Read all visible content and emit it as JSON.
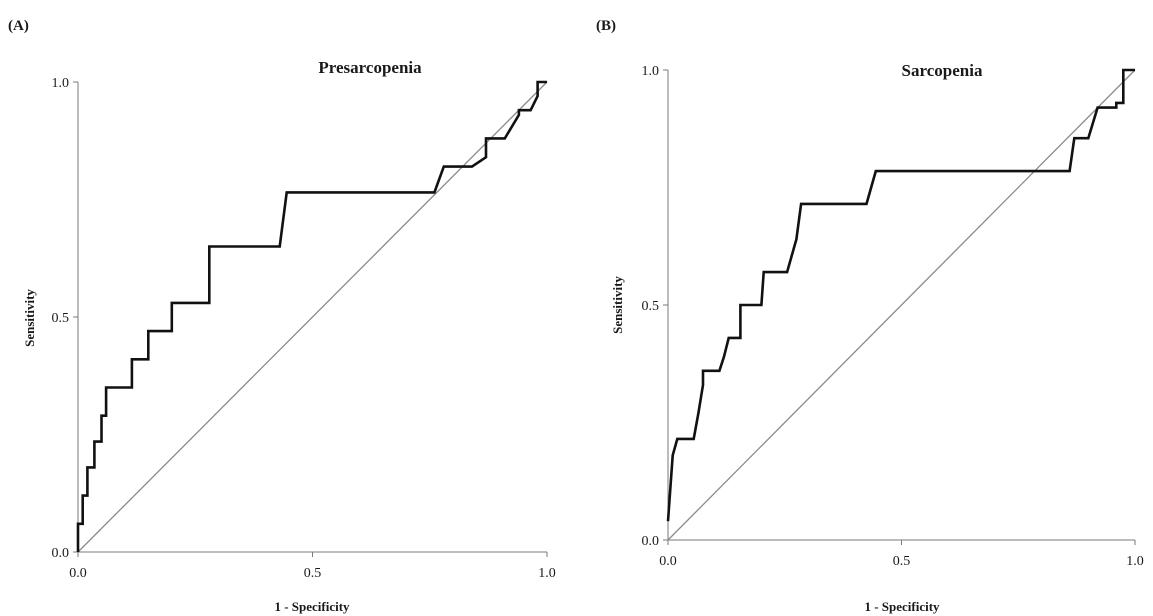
{
  "chart_data": [
    {
      "type": "line",
      "panel_label": "(A)",
      "title": "Presarcopenia",
      "xlabel": "1 - Specificity",
      "ylabel": "Sensitivity",
      "xlim": [
        0,
        1
      ],
      "ylim": [
        0,
        1
      ],
      "xticks": [
        "0.0",
        "0.5",
        "1.0"
      ],
      "yticks": [
        "0.0",
        "0.5",
        "1.0"
      ],
      "grid": false,
      "series": [
        {
          "role": "roc-curve",
          "x": [
            0.0,
            0.0,
            0.01,
            0.01,
            0.02,
            0.02,
            0.035,
            0.035,
            0.05,
            0.05,
            0.06,
            0.06,
            0.115,
            0.115,
            0.15,
            0.15,
            0.2,
            0.2,
            0.28,
            0.28,
            0.43,
            0.445,
            0.76,
            0.78,
            0.84,
            0.87,
            0.87,
            0.91,
            0.94,
            0.94,
            0.965,
            0.98,
            0.98,
            1.0
          ],
          "y": [
            0.0,
            0.06,
            0.06,
            0.12,
            0.12,
            0.18,
            0.18,
            0.235,
            0.235,
            0.29,
            0.29,
            0.35,
            0.35,
            0.41,
            0.41,
            0.47,
            0.47,
            0.53,
            0.53,
            0.65,
            0.65,
            0.765,
            0.765,
            0.82,
            0.82,
            0.84,
            0.88,
            0.88,
            0.93,
            0.94,
            0.94,
            0.97,
            1.0,
            1.0
          ]
        },
        {
          "role": "reference-line",
          "x": [
            0,
            1
          ],
          "y": [
            0,
            1
          ]
        }
      ]
    },
    {
      "type": "line",
      "panel_label": "(B)",
      "title": "Sarcopenia",
      "xlabel": "1 - Specificity",
      "ylabel": "Sensitivity",
      "xlim": [
        0,
        1
      ],
      "ylim": [
        0,
        1
      ],
      "xticks": [
        "0.0",
        "0.5",
        "1.0"
      ],
      "yticks": [
        "0.0",
        "0.5",
        "1.0"
      ],
      "grid": false,
      "series": [
        {
          "role": "roc-curve",
          "x": [
            0.0,
            0.01,
            0.02,
            0.02,
            0.055,
            0.065,
            0.075,
            0.075,
            0.11,
            0.12,
            0.13,
            0.13,
            0.155,
            0.155,
            0.2,
            0.205,
            0.25,
            0.255,
            0.275,
            0.285,
            0.425,
            0.445,
            0.86,
            0.87,
            0.9,
            0.92,
            0.96,
            0.96,
            0.975,
            0.975,
            1.0
          ],
          "y": [
            0.04,
            0.18,
            0.215,
            0.215,
            0.215,
            0.27,
            0.33,
            0.36,
            0.36,
            0.39,
            0.43,
            0.43,
            0.43,
            0.5,
            0.5,
            0.57,
            0.57,
            0.57,
            0.64,
            0.715,
            0.715,
            0.785,
            0.785,
            0.855,
            0.855,
            0.92,
            0.92,
            0.93,
            0.93,
            1.0,
            1.0
          ]
        },
        {
          "role": "reference-line",
          "x": [
            0,
            1
          ],
          "y": [
            0,
            1
          ]
        }
      ]
    }
  ]
}
